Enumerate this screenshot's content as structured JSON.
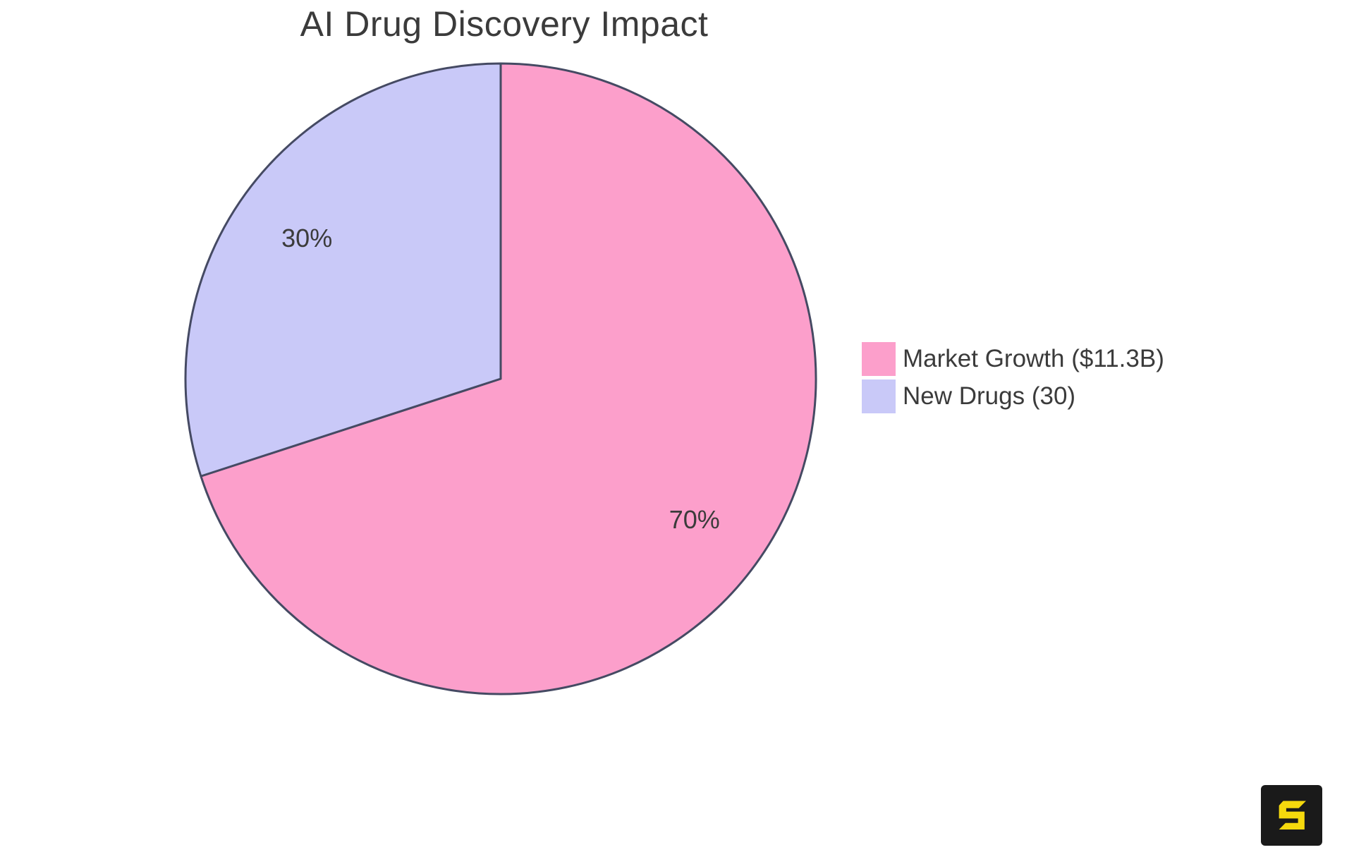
{
  "page": {
    "background": "#FFFFFF"
  },
  "chart_data": {
    "type": "pie",
    "title": "AI Drug Discovery Impact",
    "categories": [
      "Market Growth ($11.3B)",
      "New Drugs (30)"
    ],
    "values": [
      70,
      30
    ],
    "slice_labels": [
      "70%",
      "30%"
    ],
    "colors": [
      "#FC9FCB",
      "#C9C9F8"
    ],
    "outline_color": "#454A63",
    "outline_width": 3,
    "label_color": "#3B3B3B",
    "start_angle": "12 o'clock",
    "direction": "clockwise",
    "legend_position": "right",
    "grid": "off"
  },
  "legend": {
    "items": [
      {
        "label": "Market Growth ($11.3B)",
        "color": "#FC9FCB"
      },
      {
        "label": "New Drugs (30)",
        "color": "#C9C9F8"
      }
    ]
  },
  "logo": {
    "letter": "S",
    "background": "#1A1A1A",
    "color": "#F5D90D"
  }
}
